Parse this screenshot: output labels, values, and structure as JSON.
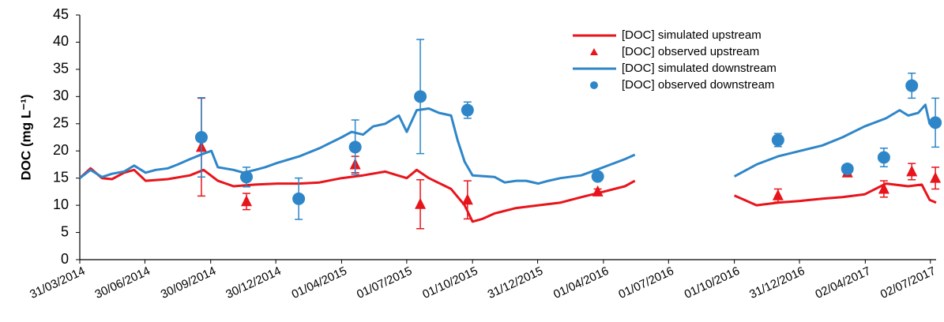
{
  "chart_data": {
    "type": "line",
    "y_label": "DOC (mg L⁻¹)",
    "ylim": [
      0,
      45
    ],
    "yticks": [
      0,
      5,
      10,
      15,
      20,
      25,
      30,
      35,
      40,
      45
    ],
    "xlim": [
      "31/03/2014",
      "10/07/2017"
    ],
    "xticks": [
      "31/03/2014",
      "30/06/2014",
      "30/09/2014",
      "30/12/2014",
      "01/04/2015",
      "01/07/2015",
      "01/10/2015",
      "31/12/2015",
      "01/04/2016",
      "01/07/2016",
      "01/10/2016",
      "31/12/2016",
      "02/04/2017",
      "02/07/2017"
    ],
    "legend": "upper right",
    "series": [
      {
        "name": "[DOC] simulated upstream",
        "color": "#e8141b",
        "marker": "line",
        "x": [
          "31/03/2014",
          "15/04/2014",
          "01/05/2014",
          "15/05/2014",
          "01/06/2014",
          "15/06/2014",
          "01/07/2014",
          "01/08/2014",
          "01/09/2014",
          "20/09/2014",
          "10/10/2014",
          "01/11/2014",
          "01/12/2014",
          "01/01/2015",
          "01/02/2015",
          "01/03/2015",
          "01/04/2015",
          "01/05/2015",
          "01/06/2015",
          "01/07/2015",
          "15/07/2015",
          "01/08/2015",
          "01/09/2015",
          "20/09/2015",
          "01/10/2015",
          "15/10/2015",
          "01/11/2015",
          "01/12/2015",
          "01/01/2016",
          "01/02/2016",
          "01/03/2016",
          "01/04/2016",
          "01/05/2016",
          "15/05/2016",
          "01/08/2016",
          "01/10/2016",
          "01/11/2016",
          "01/12/2016",
          "01/01/2017",
          "01/02/2017",
          "01/03/2017",
          "01/04/2017",
          "01/05/2017",
          "01/06/2017",
          "20/06/2017",
          "01/07/2017",
          "10/07/2017"
        ],
        "values": [
          15,
          16.8,
          15,
          14.8,
          16,
          16.5,
          14.5,
          14.8,
          15.5,
          16.5,
          14.5,
          13.5,
          13.8,
          14,
          14,
          14.2,
          15,
          15.5,
          16.2,
          15,
          16.5,
          15,
          13,
          10,
          7,
          7.5,
          8.5,
          9.5,
          10,
          10.5,
          11.5,
          12.5,
          13.5,
          14.5,
          null,
          11.8,
          10,
          10.5,
          10.8,
          11.2,
          11.5,
          12,
          14,
          13.5,
          13.8,
          11,
          10.5
        ]
      },
      {
        "name": "[DOC] observed upstream",
        "color": "#e8141b",
        "marker": "triangle",
        "x": [
          "17/09/2014",
          "19/11/2014",
          "20/04/2015",
          "20/07/2015",
          "24/09/2015",
          "24/03/2016",
          "01/12/2016",
          "08/03/2017",
          "28/04/2017",
          "06/06/2017",
          "09/07/2017"
        ],
        "values": [
          20.7,
          10.7,
          17.5,
          10.2,
          11,
          12.5,
          11.8,
          16,
          13,
          16.2,
          15
        ],
        "errors": [
          9,
          1.5,
          1.5,
          4.5,
          3.5,
          0.5,
          1.2,
          0.3,
          1.5,
          1.5,
          2
        ]
      },
      {
        "name": "[DOC] simulated downstream",
        "color": "#2e86c8",
        "marker": "line",
        "x": [
          "31/03/2014",
          "15/04/2014",
          "01/05/2014",
          "15/05/2014",
          "01/06/2014",
          "15/06/2014",
          "01/07/2014",
          "15/07/2014",
          "01/08/2014",
          "15/08/2014",
          "01/09/2014",
          "20/09/2014",
          "01/10/2014",
          "10/10/2014",
          "01/11/2014",
          "15/11/2014",
          "01/12/2014",
          "15/12/2014",
          "01/01/2015",
          "01/02/2015",
          "01/03/2015",
          "01/04/2015",
          "15/04/2015",
          "01/05/2015",
          "15/05/2015",
          "01/06/2015",
          "20/06/2015",
          "01/07/2015",
          "15/07/2015",
          "01/08/2015",
          "15/08/2015",
          "01/09/2015",
          "10/09/2015",
          "20/09/2015",
          "01/10/2015",
          "01/11/2015",
          "15/11/2015",
          "01/12/2015",
          "15/12/2015",
          "01/01/2016",
          "15/01/2016",
          "01/02/2016",
          "01/03/2016",
          "01/04/2016",
          "01/05/2016",
          "15/05/2016",
          "01/08/2016",
          "01/10/2016",
          "01/11/2016",
          "01/12/2016",
          "01/01/2017",
          "01/02/2017",
          "01/03/2017",
          "01/04/2017",
          "01/05/2017",
          "20/05/2017",
          "01/06/2017",
          "15/06/2017",
          "25/06/2017",
          "01/07/2017",
          "10/07/2017"
        ],
        "values": [
          15,
          16.5,
          15.2,
          15.8,
          16.2,
          17.3,
          16,
          16.5,
          16.8,
          17.5,
          18.5,
          19.5,
          20,
          17,
          16.5,
          16,
          16.5,
          17,
          17.8,
          19,
          20.5,
          22.5,
          23.5,
          23,
          24.5,
          25,
          26.5,
          23.5,
          27.5,
          27.8,
          27,
          26.5,
          22,
          18,
          15.5,
          15.2,
          14.2,
          14.5,
          14.5,
          14,
          14.5,
          15,
          15.5,
          17,
          18.5,
          19.3,
          null,
          15.3,
          17.5,
          19,
          20,
          21,
          22.5,
          24.5,
          26,
          27.5,
          26.5,
          27,
          28.5,
          25,
          24.5
        ]
      },
      {
        "name": "[DOC] observed downstream",
        "color": "#2e86c8",
        "marker": "circle",
        "x": [
          "17/09/2014",
          "19/11/2014",
          "31/01/2015",
          "20/04/2015",
          "20/07/2015",
          "24/09/2015",
          "24/03/2016",
          "01/12/2016",
          "08/03/2017",
          "28/04/2017",
          "06/06/2017",
          "09/07/2017"
        ],
        "values": [
          22.5,
          15.2,
          11.2,
          20.7,
          30,
          27.5,
          15.3,
          22,
          16.7,
          18.8,
          32,
          25.2
        ],
        "errors": [
          7.3,
          1.8,
          3.8,
          5,
          10.5,
          1.5,
          0.8,
          1.2,
          0.5,
          1.7,
          2.3,
          4.5
        ]
      }
    ]
  }
}
